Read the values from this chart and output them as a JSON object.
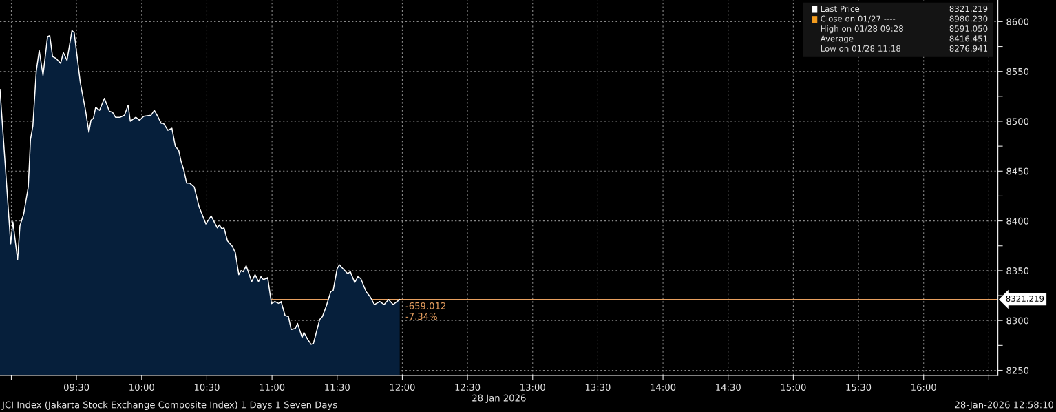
{
  "chart_data": {
    "type": "area",
    "x": [
      8.913,
      8.995,
      9.012,
      9.048,
      9.066,
      9.095,
      9.13,
      9.147,
      9.165,
      9.191,
      9.214,
      9.243,
      9.278,
      9.295,
      9.316,
      9.344,
      9.378,
      9.399,
      9.427,
      9.465,
      9.482,
      9.529,
      9.569,
      9.595,
      9.611,
      9.63,
      9.647,
      9.677,
      9.714,
      9.752,
      9.776,
      9.799,
      9.833,
      9.868,
      9.896,
      9.913,
      9.955,
      9.984,
      10.016,
      10.071,
      10.097,
      10.123,
      10.149,
      10.167,
      10.201,
      10.232,
      10.258,
      10.284,
      10.302,
      10.323,
      10.345,
      10.368,
      10.403,
      10.441,
      10.493,
      10.533,
      10.58,
      10.597,
      10.615,
      10.632,
      10.658,
      10.693,
      10.719,
      10.745,
      10.762,
      10.779,
      10.802,
      10.844,
      10.87,
      10.897,
      10.915,
      10.935,
      10.967,
      10.996,
      11.022,
      11.054,
      11.07,
      11.1,
      11.126,
      11.147,
      11.179,
      11.196,
      11.231,
      11.245,
      11.274,
      11.3,
      11.318,
      11.366,
      11.387,
      11.418,
      11.451,
      11.469,
      11.5,
      11.517,
      11.552,
      11.581,
      11.601,
      11.635,
      11.659,
      11.682,
      11.722,
      11.752,
      11.786,
      11.826,
      11.861,
      11.894,
      11.929,
      11.96,
      11.98
    ],
    "series": [
      {
        "color": "#061f3b",
        "values": [
          8532,
          8377,
          8399,
          8361,
          8395,
          8407,
          8434,
          8482,
          8495,
          8550,
          8571,
          8546,
          8585,
          8586,
          8565,
          8563,
          8558,
          8569,
          8561,
          8591,
          8589,
          8539,
          8511,
          8489,
          8501,
          8503,
          8514,
          8511,
          8523,
          8510,
          8509,
          8504,
          8504,
          8506,
          8516,
          8500,
          8504,
          8501,
          8505,
          8506,
          8511,
          8505,
          8498,
          8498,
          8491,
          8493,
          8475,
          8471,
          8460,
          8451,
          8438,
          8438,
          8434,
          8414,
          8397,
          8405,
          8393,
          8396,
          8392,
          8393,
          8380,
          8375,
          8368,
          8346,
          8350,
          8349,
          8355,
          8339,
          8346,
          8339,
          8344,
          8341,
          8343,
          8317,
          8319,
          8317,
          8319,
          8305,
          8304,
          8291,
          8292,
          8297,
          8283,
          8288,
          8281,
          8276,
          8277,
          8301,
          8304,
          8315,
          8329,
          8330,
          8352,
          8356,
          8351,
          8347,
          8349,
          8338,
          8344,
          8342,
          8329,
          8324,
          8316,
          8319,
          8316,
          8321,
          8316,
          8319,
          8321
        ]
      }
    ],
    "xlim": [
      8.913,
      16.57
    ],
    "xticks": [
      {
        "value": 9,
        "label": null
      },
      {
        "value": 9.5,
        "label": "09:30"
      },
      {
        "value": 10,
        "label": "10:00"
      },
      {
        "value": 10.5,
        "label": "10:30"
      },
      {
        "value": 11,
        "label": "11:00"
      },
      {
        "value": 11.5,
        "label": "11:30"
      },
      {
        "value": 12,
        "label": "12:00"
      },
      {
        "value": 12.5,
        "label": "12:30"
      },
      {
        "value": 13,
        "label": "13:00"
      },
      {
        "value": 13.5,
        "label": "13:30"
      },
      {
        "value": 14,
        "label": "14:00"
      },
      {
        "value": 14.5,
        "label": "14:30"
      },
      {
        "value": 15,
        "label": "15:00"
      },
      {
        "value": 15.5,
        "label": "15:30"
      },
      {
        "value": 16,
        "label": "16:00"
      },
      {
        "value": 16.5,
        "label": null
      }
    ],
    "ylim": [
      8244.8,
      8621.7
    ],
    "yticks": [
      8250,
      {
        "value": 8275,
        "label": null
      },
      8300,
      {
        "value": 8325,
        "label": null
      },
      8350,
      {
        "value": 8375,
        "label": null
      },
      8400,
      {
        "value": 8425,
        "label": null
      },
      8450,
      {
        "value": 8475,
        "label": null
      },
      8500,
      {
        "value": 8525,
        "label": null
      },
      8550,
      {
        "value": 8575,
        "label": null
      },
      8600
    ],
    "xlabel": "28 Jan 2026",
    "grid": true,
    "ref_lines": [
      {
        "axis": "y",
        "value": 8321.219,
        "label": "8321.219",
        "color": "#e8a060"
      }
    ],
    "annotations": [
      "Last Price",
      "8321.219",
      "Close on 01/27 ----",
      "8980.230",
      "High on 01/28 09:28",
      "8591.050",
      "Average",
      "8416.451",
      "Low on 01/28 11:18",
      "8276.941",
      {
        "text": "-659.012\n-7.34%",
        "x": 11.98,
        "y": 8321.219
      },
      "JCI Index (Jakarta Stock Exchange Composite Index) 1 Days 1 Seven Days",
      "28-Jan-2026 12:58:10"
    ]
  }
}
